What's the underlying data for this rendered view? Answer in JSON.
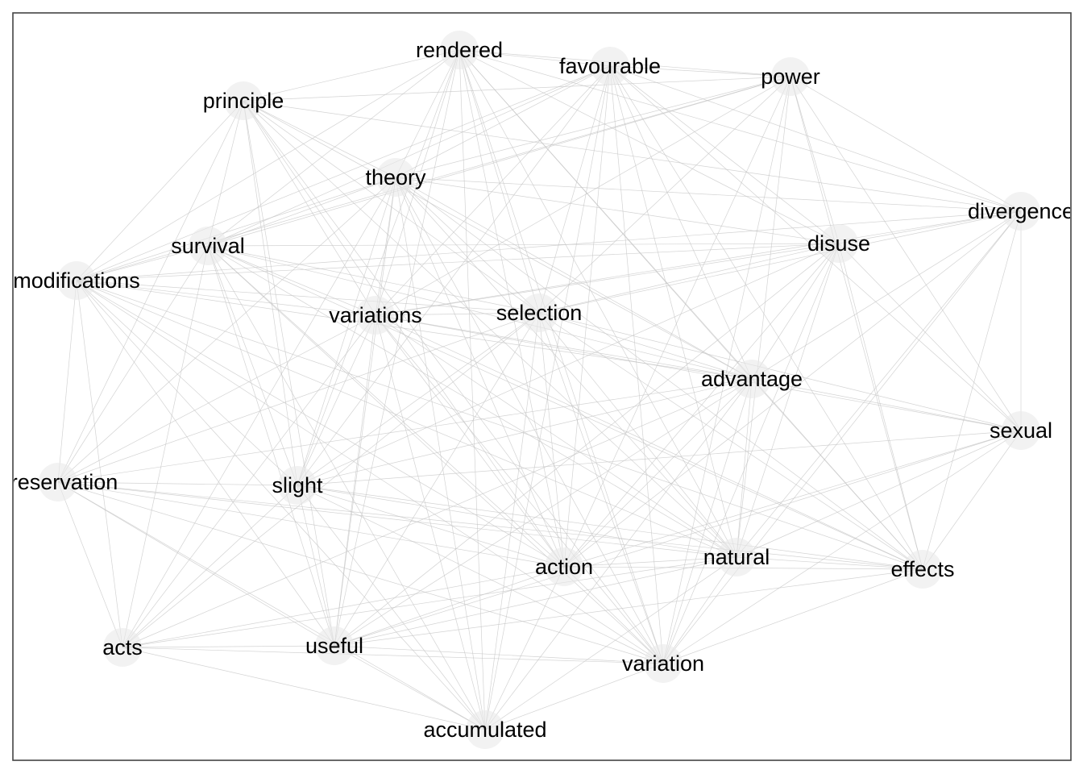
{
  "nodes": [
    {
      "id": "rendered",
      "label": "rendered"
    },
    {
      "id": "favourable",
      "label": "favourable"
    },
    {
      "id": "power",
      "label": "power"
    },
    {
      "id": "principle",
      "label": "principle"
    },
    {
      "id": "theory",
      "label": "theory"
    },
    {
      "id": "divergence",
      "label": "divergence"
    },
    {
      "id": "survival",
      "label": "survival"
    },
    {
      "id": "disuse",
      "label": "disuse"
    },
    {
      "id": "modifications",
      "label": "modifications"
    },
    {
      "id": "variations",
      "label": "variations"
    },
    {
      "id": "selection",
      "label": "selection"
    },
    {
      "id": "advantage",
      "label": "advantage"
    },
    {
      "id": "sexual",
      "label": "sexual"
    },
    {
      "id": "preservation",
      "label": "preservation"
    },
    {
      "id": "slight",
      "label": "slight"
    },
    {
      "id": "action",
      "label": "action"
    },
    {
      "id": "natural",
      "label": "natural"
    },
    {
      "id": "effects",
      "label": "effects"
    },
    {
      "id": "acts",
      "label": "acts"
    },
    {
      "id": "useful",
      "label": "useful"
    },
    {
      "id": "variation",
      "label": "variation"
    },
    {
      "id": "accumulated",
      "label": "accumulated"
    }
  ],
  "edges": [
    [
      "rendered",
      "favourable"
    ],
    [
      "rendered",
      "power"
    ],
    [
      "rendered",
      "principle"
    ],
    [
      "rendered",
      "theory"
    ],
    [
      "rendered",
      "survival"
    ],
    [
      "rendered",
      "modifications"
    ],
    [
      "rendered",
      "variations"
    ],
    [
      "rendered",
      "selection"
    ],
    [
      "rendered",
      "advantage"
    ],
    [
      "rendered",
      "slight"
    ],
    [
      "rendered",
      "action"
    ],
    [
      "rendered",
      "natural"
    ],
    [
      "rendered",
      "useful"
    ],
    [
      "rendered",
      "variation"
    ],
    [
      "rendered",
      "accumulated"
    ],
    [
      "rendered",
      "disuse"
    ],
    [
      "rendered",
      "effects"
    ],
    [
      "rendered",
      "divergence"
    ],
    [
      "favourable",
      "power"
    ],
    [
      "favourable",
      "theory"
    ],
    [
      "favourable",
      "survival"
    ],
    [
      "favourable",
      "variations"
    ],
    [
      "favourable",
      "selection"
    ],
    [
      "favourable",
      "advantage"
    ],
    [
      "favourable",
      "slight"
    ],
    [
      "favourable",
      "action"
    ],
    [
      "favourable",
      "natural"
    ],
    [
      "favourable",
      "variation"
    ],
    [
      "favourable",
      "disuse"
    ],
    [
      "favourable",
      "divergence"
    ],
    [
      "favourable",
      "modifications"
    ],
    [
      "favourable",
      "effects"
    ],
    [
      "favourable",
      "sexual"
    ],
    [
      "favourable",
      "accumulated"
    ],
    [
      "power",
      "theory"
    ],
    [
      "power",
      "disuse"
    ],
    [
      "power",
      "selection"
    ],
    [
      "power",
      "variations"
    ],
    [
      "power",
      "natural"
    ],
    [
      "power",
      "action"
    ],
    [
      "power",
      "effects"
    ],
    [
      "power",
      "sexual"
    ],
    [
      "power",
      "modifications"
    ],
    [
      "power",
      "survival"
    ],
    [
      "power",
      "divergence"
    ],
    [
      "power",
      "variation"
    ],
    [
      "power",
      "principle"
    ],
    [
      "principle",
      "theory"
    ],
    [
      "principle",
      "survival"
    ],
    [
      "principle",
      "variations"
    ],
    [
      "principle",
      "selection"
    ],
    [
      "principle",
      "slight"
    ],
    [
      "principle",
      "action"
    ],
    [
      "principle",
      "natural"
    ],
    [
      "principle",
      "useful"
    ],
    [
      "principle",
      "advantage"
    ],
    [
      "principle",
      "divergence"
    ],
    [
      "principle",
      "modifications"
    ],
    [
      "principle",
      "variation"
    ],
    [
      "principle",
      "preservation"
    ],
    [
      "theory",
      "survival"
    ],
    [
      "theory",
      "modifications"
    ],
    [
      "theory",
      "variations"
    ],
    [
      "theory",
      "selection"
    ],
    [
      "theory",
      "advantage"
    ],
    [
      "theory",
      "slight"
    ],
    [
      "theory",
      "action"
    ],
    [
      "theory",
      "natural"
    ],
    [
      "theory",
      "useful"
    ],
    [
      "theory",
      "variation"
    ],
    [
      "theory",
      "accumulated"
    ],
    [
      "theory",
      "disuse"
    ],
    [
      "theory",
      "divergence"
    ],
    [
      "theory",
      "preservation"
    ],
    [
      "theory",
      "effects"
    ],
    [
      "theory",
      "acts"
    ],
    [
      "divergence",
      "disuse"
    ],
    [
      "divergence",
      "selection"
    ],
    [
      "divergence",
      "advantage"
    ],
    [
      "divergence",
      "sexual"
    ],
    [
      "divergence",
      "natural"
    ],
    [
      "divergence",
      "action"
    ],
    [
      "divergence",
      "effects"
    ],
    [
      "divergence",
      "variations"
    ],
    [
      "divergence",
      "modifications"
    ],
    [
      "divergence",
      "variation"
    ],
    [
      "survival",
      "modifications"
    ],
    [
      "survival",
      "variations"
    ],
    [
      "survival",
      "selection"
    ],
    [
      "survival",
      "advantage"
    ],
    [
      "survival",
      "slight"
    ],
    [
      "survival",
      "action"
    ],
    [
      "survival",
      "natural"
    ],
    [
      "survival",
      "acts"
    ],
    [
      "survival",
      "useful"
    ],
    [
      "survival",
      "preservation"
    ],
    [
      "survival",
      "variation"
    ],
    [
      "survival",
      "accumulated"
    ],
    [
      "survival",
      "disuse"
    ],
    [
      "survival",
      "effects"
    ],
    [
      "disuse",
      "variations"
    ],
    [
      "disuse",
      "selection"
    ],
    [
      "disuse",
      "advantage"
    ],
    [
      "disuse",
      "natural"
    ],
    [
      "disuse",
      "effects"
    ],
    [
      "disuse",
      "action"
    ],
    [
      "disuse",
      "variation"
    ],
    [
      "disuse",
      "sexual"
    ],
    [
      "disuse",
      "useful"
    ],
    [
      "disuse",
      "slight"
    ],
    [
      "disuse",
      "modifications"
    ],
    [
      "modifications",
      "variations"
    ],
    [
      "modifications",
      "selection"
    ],
    [
      "modifications",
      "advantage"
    ],
    [
      "modifications",
      "preservation"
    ],
    [
      "modifications",
      "slight"
    ],
    [
      "modifications",
      "action"
    ],
    [
      "modifications",
      "natural"
    ],
    [
      "modifications",
      "acts"
    ],
    [
      "modifications",
      "useful"
    ],
    [
      "modifications",
      "variation"
    ],
    [
      "modifications",
      "effects"
    ],
    [
      "modifications",
      "accumulated"
    ],
    [
      "variations",
      "selection"
    ],
    [
      "variations",
      "advantage"
    ],
    [
      "variations",
      "slight"
    ],
    [
      "variations",
      "action"
    ],
    [
      "variations",
      "natural"
    ],
    [
      "variations",
      "effects"
    ],
    [
      "variations",
      "useful"
    ],
    [
      "variations",
      "variation"
    ],
    [
      "variations",
      "accumulated"
    ],
    [
      "variations",
      "preservation"
    ],
    [
      "variations",
      "acts"
    ],
    [
      "variations",
      "sexual"
    ],
    [
      "selection",
      "advantage"
    ],
    [
      "selection",
      "slight"
    ],
    [
      "selection",
      "action"
    ],
    [
      "selection",
      "natural"
    ],
    [
      "selection",
      "variation"
    ],
    [
      "selection",
      "accumulated"
    ],
    [
      "selection",
      "preservation"
    ],
    [
      "selection",
      "useful"
    ],
    [
      "selection",
      "sexual"
    ],
    [
      "selection",
      "effects"
    ],
    [
      "selection",
      "acts"
    ],
    [
      "advantage",
      "sexual"
    ],
    [
      "advantage",
      "natural"
    ],
    [
      "advantage",
      "action"
    ],
    [
      "advantage",
      "variation"
    ],
    [
      "advantage",
      "slight"
    ],
    [
      "advantage",
      "preservation"
    ],
    [
      "advantage",
      "useful"
    ],
    [
      "advantage",
      "effects"
    ],
    [
      "advantage",
      "acts"
    ],
    [
      "advantage",
      "accumulated"
    ],
    [
      "sexual",
      "natural"
    ],
    [
      "sexual",
      "action"
    ],
    [
      "sexual",
      "effects"
    ],
    [
      "sexual",
      "variation"
    ],
    [
      "sexual",
      "slight"
    ],
    [
      "sexual",
      "useful"
    ],
    [
      "preservation",
      "slight"
    ],
    [
      "preservation",
      "action"
    ],
    [
      "preservation",
      "natural"
    ],
    [
      "preservation",
      "acts"
    ],
    [
      "preservation",
      "useful"
    ],
    [
      "preservation",
      "variation"
    ],
    [
      "preservation",
      "accumulated"
    ],
    [
      "preservation",
      "effects"
    ],
    [
      "slight",
      "action"
    ],
    [
      "slight",
      "natural"
    ],
    [
      "slight",
      "useful"
    ],
    [
      "slight",
      "variation"
    ],
    [
      "slight",
      "accumulated"
    ],
    [
      "slight",
      "acts"
    ],
    [
      "slight",
      "effects"
    ],
    [
      "action",
      "natural"
    ],
    [
      "action",
      "useful"
    ],
    [
      "action",
      "variation"
    ],
    [
      "action",
      "accumulated"
    ],
    [
      "action",
      "effects"
    ],
    [
      "action",
      "acts"
    ],
    [
      "natural",
      "effects"
    ],
    [
      "natural",
      "variation"
    ],
    [
      "natural",
      "accumulated"
    ],
    [
      "natural",
      "useful"
    ],
    [
      "natural",
      "acts"
    ],
    [
      "effects",
      "variation"
    ],
    [
      "effects",
      "useful"
    ],
    [
      "acts",
      "useful"
    ],
    [
      "acts",
      "accumulated"
    ],
    [
      "acts",
      "variation"
    ],
    [
      "useful",
      "accumulated"
    ],
    [
      "useful",
      "variation"
    ],
    [
      "variation",
      "accumulated"
    ]
  ]
}
